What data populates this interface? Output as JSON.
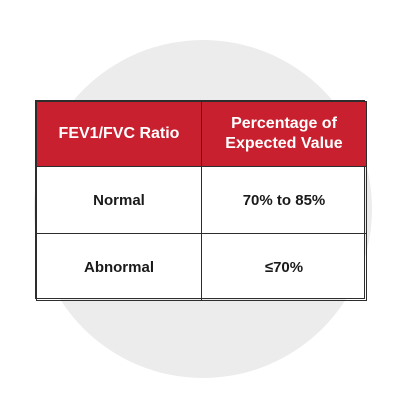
{
  "colors": {
    "header_background": "#c8202f",
    "circle_background": "#ececec"
  },
  "table": {
    "headers": [
      "FEV1/FVC Ratio",
      "Percentage of Expected Value"
    ],
    "rows": [
      [
        "Normal",
        "70% to 85%"
      ],
      [
        "Abnormal",
        "≤70%"
      ]
    ]
  }
}
